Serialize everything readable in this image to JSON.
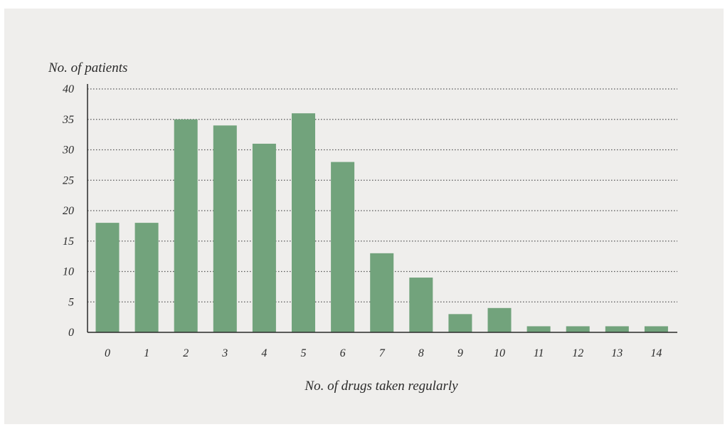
{
  "chart_data": {
    "type": "bar",
    "title": "",
    "xlabel": "No. of drugs taken regularly",
    "ylabel": "No. of patients",
    "categories": [
      "0",
      "1",
      "2",
      "3",
      "4",
      "5",
      "6",
      "7",
      "8",
      "9",
      "10",
      "11",
      "12",
      "13",
      "14"
    ],
    "values": [
      18,
      18,
      35,
      34,
      31,
      36,
      28,
      13,
      9,
      3,
      4,
      1,
      1,
      1,
      1
    ],
    "ylim": [
      0,
      40
    ],
    "yticks": [
      "0",
      "5",
      "10",
      "15",
      "20",
      "25",
      "30",
      "35",
      "40"
    ],
    "grid": "horizontal-dotted",
    "legend": "none",
    "colors": {
      "bar": "#72a37c",
      "background": "#efeeec",
      "axis": "#2a2a2a",
      "grid": "#555555"
    }
  }
}
